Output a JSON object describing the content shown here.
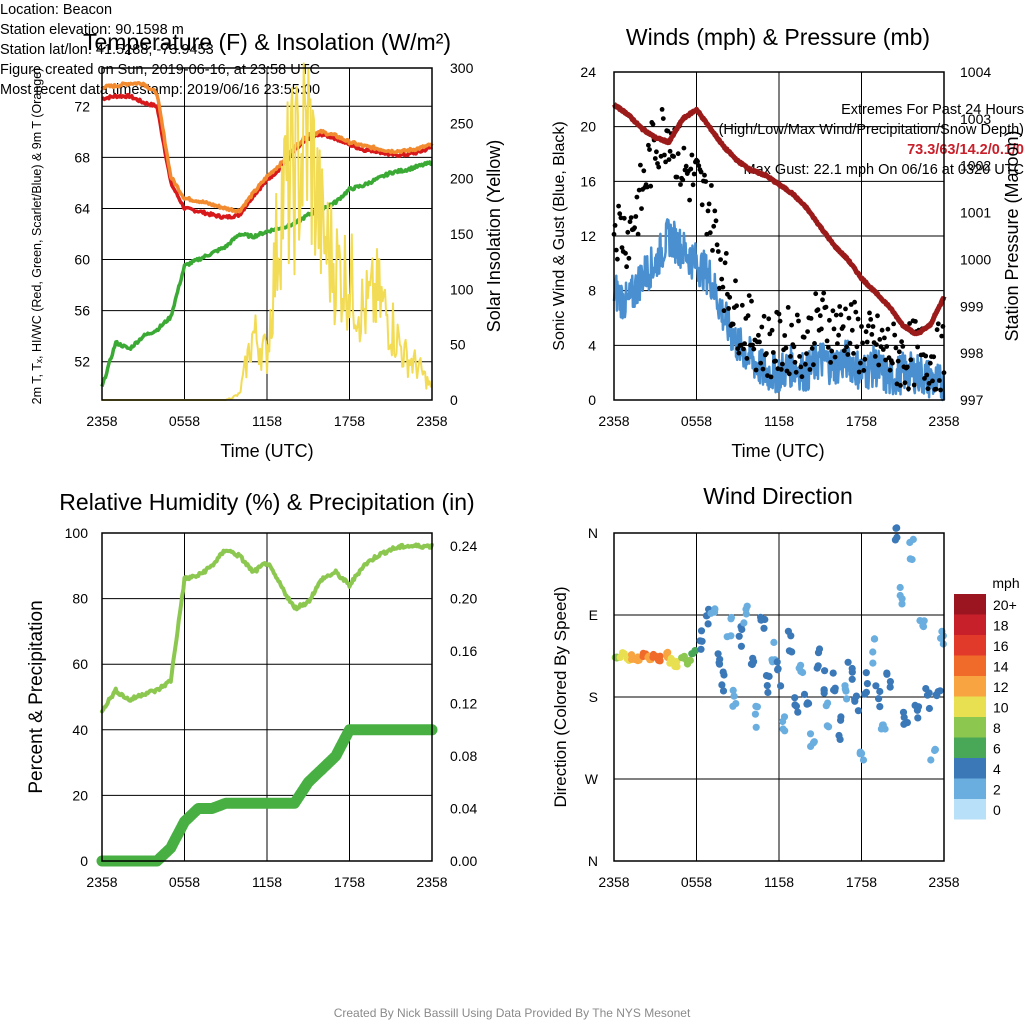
{
  "time_ticks": [
    "2358",
    "0558",
    "1158",
    "1758",
    "2358"
  ],
  "panels": {
    "temperature": {
      "title": "Temperature (F) & Insolation (W/m²)",
      "ylabel_left": "2m T, Tₓ, HI/WC (Red, Green, Scarlet/Blue) & 9m T (Orange)",
      "ylabel_right": "Solar Insolation (Yellow)",
      "xlabel": "Time (UTC)"
    },
    "winds": {
      "title": "Winds (mph) & Pressure (mb)",
      "ylabel_left": "Sonic Wind & Gust (Blue, Black)",
      "ylabel_right": "Station Pressure (Maroon)",
      "xlabel": "Time (UTC)"
    },
    "humidity": {
      "title": "Relative Humidity (%) & Precipitation (in)",
      "ylabel_left": "Percent & Precipitation"
    },
    "direction": {
      "title": "Wind Direction",
      "ylabel_left": "Direction (Colored By Speed)",
      "legend_title": "mph",
      "legend_labels": [
        "20+",
        "18",
        "16",
        "14",
        "12",
        "10",
        "8",
        "6",
        "4",
        "2",
        "0"
      ],
      "legend_colors": [
        "#9b1520",
        "#c8202b",
        "#e23a2a",
        "#f06a2a",
        "#f8a440",
        "#e8e050",
        "#8cc850",
        "#48a858",
        "#3a78b8",
        "#6aaee0",
        "#b8e0f8"
      ]
    }
  },
  "footer": {
    "left": [
      "Location: Beacon",
      "Station elevation: 90.1598 m",
      "Station lat/lon: 41.5288; -73.9453",
      "Figure created on Sun, 2019-06-16, at 23:58 UTC",
      "Most recent data timestamp: 2019/06/16 23:55:00"
    ],
    "right_heading_1": "Extremes For Past 24 Hours",
    "right_heading_2": "(High/Low/Max Wind/Precipitation/Snow Depth)",
    "right_values": "73.3/63/14.2/0.1/0",
    "right_gust": "Max Gust: 22.1 mph On 06/16 at 0320 UTC",
    "credit": "Created By Nick Bassill Using Data Provided By The NYS Mesonet"
  },
  "chart_data": [
    {
      "type": "line",
      "id": "temperature",
      "x_hours": [
        0,
        1,
        2,
        3,
        4,
        5,
        6,
        7,
        8,
        9,
        10,
        11,
        12,
        13,
        14,
        15,
        16,
        17,
        18,
        19,
        20,
        21,
        22,
        23,
        24
      ],
      "xticks": [
        "2358",
        "0558",
        "1158",
        "1758",
        "2358"
      ],
      "ylim_left": [
        49,
        75
      ],
      "yticks_left": [
        52,
        56,
        60,
        64,
        68,
        72
      ],
      "ylim_right": [
        0,
        300
      ],
      "yticks_right": [
        0,
        50,
        100,
        150,
        200,
        250,
        300
      ],
      "series": [
        {
          "name": "2m T",
          "axis": "left",
          "color": "#d7191c",
          "values": [
            72.6,
            72.8,
            72.8,
            72.3,
            72.0,
            66.0,
            64.0,
            63.8,
            63.5,
            63.3,
            63.5,
            65.0,
            66.2,
            67.2,
            68.5,
            69.5,
            69.8,
            69.5,
            69.0,
            68.6,
            68.5,
            68.2,
            68.2,
            68.4,
            68.8
          ]
        },
        {
          "name": "9m T",
          "axis": "left",
          "color": "#f28a30",
          "values": [
            73.5,
            73.6,
            73.8,
            73.8,
            73.0,
            66.5,
            64.8,
            64.6,
            64.3,
            64.0,
            63.8,
            65.2,
            66.5,
            67.5,
            68.8,
            69.8,
            70.0,
            69.7,
            69.2,
            68.9,
            68.7,
            68.5,
            68.5,
            68.7,
            69.0
          ]
        },
        {
          "name": "Td",
          "axis": "left",
          "color": "#3aaa35",
          "values": [
            50.0,
            53.5,
            53.0,
            54.0,
            54.5,
            55.5,
            59.5,
            60.0,
            60.5,
            61.0,
            62.0,
            61.8,
            62.2,
            62.5,
            62.8,
            63.5,
            64.0,
            64.5,
            65.5,
            65.8,
            66.3,
            66.8,
            67.0,
            67.3,
            67.6
          ]
        },
        {
          "name": "Solar Insolation",
          "axis": "right",
          "color": "#f3dc55",
          "values": [
            0,
            0,
            0,
            0,
            0,
            0,
            0,
            0,
            0,
            0,
            5,
            60,
            40,
            180,
            200,
            240,
            150,
            120,
            110,
            80,
            95,
            70,
            40,
            30,
            10
          ]
        }
      ]
    },
    {
      "type": "line",
      "id": "winds",
      "x_hours": [
        0,
        1,
        2,
        3,
        4,
        5,
        6,
        7,
        8,
        9,
        10,
        11,
        12,
        13,
        14,
        15,
        16,
        17,
        18,
        19,
        20,
        21,
        22,
        23,
        24
      ],
      "xticks": [
        "2358",
        "0558",
        "1158",
        "1758",
        "2358"
      ],
      "ylim_left": [
        0,
        24
      ],
      "yticks_left": [
        0,
        4,
        8,
        12,
        16,
        20,
        24
      ],
      "ylim_right": [
        997,
        1004
      ],
      "yticks_right": [
        997,
        998,
        999,
        1000,
        1001,
        1002,
        1003,
        1004
      ],
      "series": [
        {
          "name": "Sonic Wind",
          "axis": "left",
          "color": "#4a90d0",
          "values": [
            8,
            7,
            9,
            10,
            12,
            11,
            10,
            9,
            6,
            4,
            3,
            2,
            2,
            2.5,
            2,
            3,
            2.5,
            3,
            2,
            2.5,
            1.5,
            2,
            2,
            1.5,
            1
          ]
        },
        {
          "name": "Gust",
          "axis": "left",
          "color": "#000000",
          "style": "dots",
          "values": [
            13,
            12,
            15,
            19,
            20,
            17,
            16,
            14,
            9,
            6,
            5,
            4,
            4,
            4.5,
            4,
            6,
            5,
            5.5,
            4,
            4,
            3.5,
            3,
            3.5,
            3,
            3.2
          ]
        },
        {
          "name": "Station Pressure",
          "axis": "right",
          "color": "#9b1b1b",
          "values": [
            1003.3,
            1003.1,
            1002.8,
            1002.6,
            1002.5,
            1003.0,
            1003.2,
            1002.8,
            1002.4,
            1002.1,
            1001.9,
            1001.8,
            1001.6,
            1001.4,
            1001.1,
            1000.7,
            1000.3,
            1000.0,
            999.6,
            999.3,
            999.0,
            998.6,
            998.4,
            998.6,
            999.2
          ]
        }
      ]
    },
    {
      "type": "line",
      "id": "humidity",
      "x_hours": [
        0,
        1,
        2,
        3,
        4,
        5,
        6,
        7,
        8,
        9,
        10,
        11,
        12,
        13,
        14,
        15,
        16,
        17,
        18,
        19,
        20,
        21,
        22,
        23,
        24
      ],
      "xticks": [
        "2358",
        "0558",
        "1158",
        "1758",
        "2358"
      ],
      "ylim_left": [
        0,
        100
      ],
      "yticks_left": [
        0,
        20,
        40,
        60,
        80,
        100
      ],
      "ylim_right": [
        0,
        0.25
      ],
      "yticks_right": [
        "0.00",
        "0.04",
        "0.08",
        "0.12",
        "0.16",
        "0.20",
        "0.24"
      ],
      "series": [
        {
          "name": "Relative Humidity",
          "axis": "left",
          "color": "#8cc850",
          "values": [
            46,
            52,
            49,
            51,
            52,
            55,
            86,
            87,
            90,
            95,
            93,
            88,
            91,
            84,
            77,
            79,
            86,
            88,
            84,
            90,
            93,
            95,
            96,
            96,
            96
          ]
        },
        {
          "name": "Precipitation",
          "axis": "right",
          "color": "#48b043",
          "style": "thick",
          "values": [
            0,
            0,
            0,
            0,
            0,
            0.01,
            0.03,
            0.04,
            0.04,
            0.044,
            0.044,
            0.044,
            0.044,
            0.044,
            0.044,
            0.06,
            0.07,
            0.08,
            0.1,
            0.1,
            0.1,
            0.1,
            0.1,
            0.1,
            0.1
          ]
        }
      ]
    },
    {
      "type": "scatter",
      "id": "direction",
      "xticks": [
        "2358",
        "0558",
        "1158",
        "1758",
        "2358"
      ],
      "yticks": [
        "N",
        "W",
        "S",
        "E",
        "N"
      ],
      "ylim_degrees": [
        0,
        360
      ],
      "points": [
        {
          "h": 0.2,
          "deg": 225,
          "mph": 8
        },
        {
          "h": 0.6,
          "deg": 226,
          "mph": 9
        },
        {
          "h": 1.0,
          "deg": 223,
          "mph": 10
        },
        {
          "h": 1.4,
          "deg": 224,
          "mph": 11
        },
        {
          "h": 1.8,
          "deg": 222,
          "mph": 12
        },
        {
          "h": 2.2,
          "deg": 225,
          "mph": 13
        },
        {
          "h": 2.6,
          "deg": 223,
          "mph": 12
        },
        {
          "h": 3.0,
          "deg": 224,
          "mph": 14
        },
        {
          "h": 3.4,
          "deg": 222,
          "mph": 13
        },
        {
          "h": 3.8,
          "deg": 226,
          "mph": 12
        },
        {
          "h": 4.2,
          "deg": 220,
          "mph": 10
        },
        {
          "h": 4.6,
          "deg": 216,
          "mph": 9
        },
        {
          "h": 5.0,
          "deg": 222,
          "mph": 8
        },
        {
          "h": 5.4,
          "deg": 218,
          "mph": 7
        },
        {
          "h": 5.8,
          "deg": 228,
          "mph": 6
        },
        {
          "h": 6.3,
          "deg": 240,
          "mph": 4
        },
        {
          "h": 6.8,
          "deg": 265,
          "mph": 3
        },
        {
          "h": 7.2,
          "deg": 285,
          "mph": 2
        },
        {
          "h": 7.6,
          "deg": 225,
          "mph": 3
        },
        {
          "h": 8.0,
          "deg": 200,
          "mph": 4
        },
        {
          "h": 8.4,
          "deg": 260,
          "mph": 2
        },
        {
          "h": 8.8,
          "deg": 180,
          "mph": 1
        },
        {
          "h": 9.2,
          "deg": 245,
          "mph": 3
        },
        {
          "h": 9.6,
          "deg": 270,
          "mph": 2
        },
        {
          "h": 10.0,
          "deg": 215,
          "mph": 3
        },
        {
          "h": 10.4,
          "deg": 160,
          "mph": 2
        },
        {
          "h": 10.8,
          "deg": 255,
          "mph": 3
        },
        {
          "h": 11.2,
          "deg": 195,
          "mph": 4
        },
        {
          "h": 11.6,
          "deg": 230,
          "mph": 2
        },
        {
          "h": 12.0,
          "deg": 205,
          "mph": 3
        },
        {
          "h": 12.4,
          "deg": 150,
          "mph": 2
        },
        {
          "h": 12.8,
          "deg": 240,
          "mph": 3
        },
        {
          "h": 13.2,
          "deg": 175,
          "mph": 4
        },
        {
          "h": 13.6,
          "deg": 215,
          "mph": 2
        },
        {
          "h": 14.0,
          "deg": 185,
          "mph": 3
        },
        {
          "h": 14.4,
          "deg": 135,
          "mph": 2
        },
        {
          "h": 14.8,
          "deg": 225,
          "mph": 4
        },
        {
          "h": 15.2,
          "deg": 195,
          "mph": 3
        },
        {
          "h": 15.6,
          "deg": 160,
          "mph": 2
        },
        {
          "h": 16.0,
          "deg": 200,
          "mph": 4
        },
        {
          "h": 16.4,
          "deg": 145,
          "mph": 3
        },
        {
          "h": 16.8,
          "deg": 185,
          "mph": 2
        },
        {
          "h": 17.2,
          "deg": 210,
          "mph": 3
        },
        {
          "h": 17.6,
          "deg": 170,
          "mph": 4
        },
        {
          "h": 18.0,
          "deg": 120,
          "mph": 2
        },
        {
          "h": 18.4,
          "deg": 195,
          "mph": 3
        },
        {
          "h": 18.8,
          "deg": 230,
          "mph": 2
        },
        {
          "h": 19.2,
          "deg": 180,
          "mph": 3
        },
        {
          "h": 19.6,
          "deg": 150,
          "mph": 2
        },
        {
          "h": 20.0,
          "deg": 200,
          "mph": 3
        },
        {
          "h": 20.4,
          "deg": 355,
          "mph": 3
        },
        {
          "h": 20.8,
          "deg": 290,
          "mph": 2
        },
        {
          "h": 21.2,
          "deg": 160,
          "mph": 3
        },
        {
          "h": 21.6,
          "deg": 340,
          "mph": 2
        },
        {
          "h": 22.0,
          "deg": 170,
          "mph": 3
        },
        {
          "h": 22.4,
          "deg": 260,
          "mph": 2
        },
        {
          "h": 22.8,
          "deg": 180,
          "mph": 3
        },
        {
          "h": 23.2,
          "deg": 120,
          "mph": 2
        },
        {
          "h": 23.6,
          "deg": 195,
          "mph": 3
        },
        {
          "h": 23.9,
          "deg": 240,
          "mph": 2
        }
      ]
    }
  ]
}
